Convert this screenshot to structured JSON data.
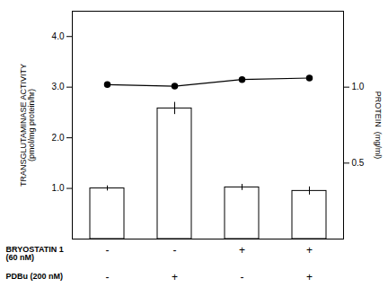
{
  "chart_data": {
    "type": "bar",
    "ylabel": "TRANSGLUTAMINASE ACTIVITY\n(pmol/mg protein/hr)",
    "y2label": "PROTEIN  (mg/ml)",
    "ylim": [
      0,
      4.5
    ],
    "yticks": [
      {
        "value": 1,
        "label": "1.0"
      },
      {
        "value": 2,
        "label": "2.0"
      },
      {
        "value": 3,
        "label": "3.0"
      },
      {
        "value": 4,
        "label": "4.0"
      }
    ],
    "y2lim": [
      0,
      1.5
    ],
    "y2ticks": [
      0.5,
      {
        "value": 1,
        "label": "1.0"
      }
    ],
    "tick_labels": "y",
    "category_rows": [
      {
        "name": "BRYOSTATIN 1\n(60 nM)",
        "labels": [
          "-",
          "-",
          "+",
          "+"
        ]
      },
      {
        "name": "PDBu (200 nM)",
        "labels": [
          "-",
          "+",
          "-",
          "+"
        ]
      }
    ],
    "series": [
      {
        "type": "bar",
        "color": "#ffffff",
        "values": [
          1.0,
          2.58,
          1.02,
          0.95
        ],
        "errors": [
          0.05,
          0.12,
          0.06,
          0.08
        ]
      },
      {
        "type": "line",
        "color": "#000000",
        "marker": "o",
        "values": [
          3.05,
          3.02,
          3.15,
          3.18
        ],
        "errors": [
          0.04,
          0.04,
          0.04,
          0.04
        ]
      }
    ]
  }
}
